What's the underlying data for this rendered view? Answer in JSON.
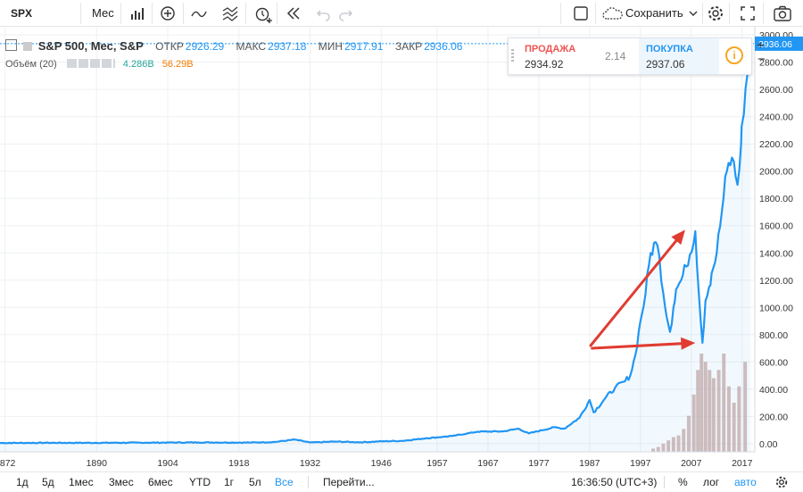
{
  "toolbar": {
    "symbol": "SPX",
    "interval": "Мес",
    "save_label": "Сохранить"
  },
  "legend": {
    "title": "S&P 500, Мес, S&P",
    "open_label": "ОТКР",
    "open": "2926.29",
    "high_label": "МАКС",
    "high": "2937.18",
    "low_label": "МИН",
    "low": "2917.91",
    "close_label": "ЗАКР",
    "close": "2936.06",
    "volume_label": "Объём (20)",
    "volume_value": "4.286B",
    "volume_ma": "56.29B"
  },
  "quote": {
    "sell_label": "ПРОДАЖА",
    "sell_value": "2934.92",
    "spread": "2.14",
    "buy_label": "ПОКУПКА",
    "buy_value": "2937.06"
  },
  "bottombar": {
    "ranges": [
      "1д",
      "5д",
      "1мес",
      "3мес",
      "6мес",
      "YTD",
      "1г",
      "5л",
      "Все"
    ],
    "goto_label": "Перейти...",
    "time": "16:36:50 (UTC+3)",
    "percent_label": "%",
    "log_label": "лог",
    "auto_label": "авто"
  },
  "colors": {
    "line": "#2196f3",
    "arrow": "#e03c31",
    "grid": "#eef0f3",
    "volume": "#c9a9a5",
    "sell": "#ef5350",
    "buy": "#2196f3"
  },
  "chart_data": {
    "type": "line",
    "title": "S&P 500, Мес, S&P",
    "x_ticks": [
      "1872",
      "1890",
      "1904",
      "1918",
      "1932",
      "1946",
      "1957",
      "1967",
      "1977",
      "1987",
      "1997",
      "2007",
      "2017"
    ],
    "y_ticks": [
      "0.00",
      "200.00",
      "400.00",
      "600.00",
      "800.00",
      "1000.00",
      "1200.00",
      "1400.00",
      "1600.00",
      "1800.00",
      "2000.00",
      "2200.00",
      "2400.00",
      "2600.00",
      "2800.00",
      "3000.00"
    ],
    "ylim": [
      -60,
      3060
    ],
    "xlim": [
      1871,
      2019.5
    ],
    "last_price_label": "2936.06",
    "series": [
      {
        "x": [
          1871,
          1880,
          1890,
          1900,
          1910,
          1920,
          1925,
          1929,
          1932,
          1937,
          1942,
          1946,
          1950,
          1955,
          1960,
          1965,
          1970,
          1973,
          1975,
          1980,
          1982,
          1985,
          1987,
          1987.8,
          1990,
          1992,
          1994,
          1995,
          1996,
          1997,
          1998,
          1999,
          2000,
          2000.7,
          2001.5,
          2002.8,
          2003.5,
          2004,
          2005,
          2006,
          2007.8,
          2008.5,
          2009.2,
          2009.8,
          2010.5,
          2011,
          2012,
          2013,
          2014,
          2015,
          2016.1,
          2016.8,
          2017,
          2018,
          2018.7
        ],
        "y": [
          5,
          6,
          6,
          7,
          9,
          8,
          12,
          30,
          8,
          15,
          10,
          17,
          20,
          40,
          56,
          88,
          90,
          110,
          75,
          120,
          110,
          190,
          320,
          230,
          330,
          410,
          460,
          500,
          650,
          900,
          1100,
          1400,
          1480,
          1380,
          1100,
          820,
          1000,
          1130,
          1200,
          1300,
          1560,
          1100,
          740,
          1050,
          1150,
          1250,
          1400,
          1700,
          2000,
          2100,
          1900,
          2200,
          2350,
          2700,
          2936
        ]
      }
    ],
    "volume": [
      0.2,
      0.3,
      0.5,
      0.7,
      0.9,
      1.0,
      1.4,
      2.2,
      3.5,
      5.0,
      6.0,
      5.5,
      5.0,
      4.5,
      5.0,
      6.0,
      4.0,
      3.0,
      4.0,
      5.5
    ],
    "volume_years": [
      1999.5,
      2000.5,
      2001.5,
      2002.5,
      2003.5,
      2004.5,
      2005.5,
      2006.5,
      2007.5,
      2008.3,
      2009,
      2009.8,
      2010.6,
      2011.4,
      2012.4,
      2013.4,
      2014.4,
      2015.4,
      2016.4,
      2017.6
    ],
    "arrows": [
      {
        "from": [
          1987.2,
          720
        ],
        "to": [
          2005.8,
          1570
        ]
      },
      {
        "from": [
          1987.5,
          700
        ],
        "to": [
          2007.8,
          740
        ]
      }
    ]
  }
}
